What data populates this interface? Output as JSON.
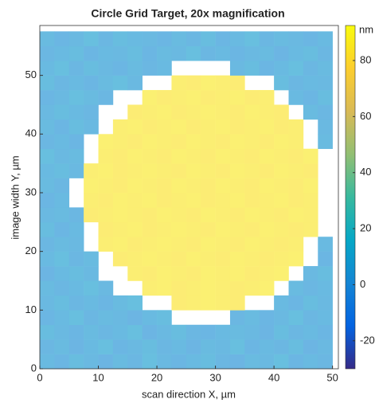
{
  "chart_data": {
    "type": "heatmap",
    "title": "Circle Grid Target, 20x magnification",
    "xlabel": "scan direction X, µm",
    "ylabel": "image width Y, µm",
    "colorbar_label": "nm",
    "colormap": "parula",
    "xlim": [
      0,
      51
    ],
    "ylim": [
      0,
      58.5
    ],
    "clim": [
      -30,
      92.5
    ],
    "xticks": [
      0,
      10,
      20,
      30,
      40,
      50
    ],
    "yticks": [
      0,
      10,
      20,
      30,
      40,
      50
    ],
    "cticks": [
      -20,
      0,
      20,
      40,
      60,
      80
    ],
    "x": [
      1.25,
      3.75,
      6.25,
      8.75,
      11.25,
      13.75,
      16.25,
      18.75,
      21.25,
      23.75,
      26.25,
      28.75,
      31.25,
      33.75,
      36.25,
      38.75,
      41.25,
      43.75,
      46.25,
      48.75
    ],
    "y": [
      1.25,
      3.75,
      6.25,
      8.75,
      11.25,
      13.75,
      16.25,
      18.75,
      21.25,
      23.75,
      26.25,
      28.75,
      31.25,
      33.75,
      36.25,
      38.75,
      41.25,
      43.75,
      46.25,
      48.75,
      51.25,
      53.75,
      56.25
    ],
    "z": [
      [
        6,
        3,
        8,
        5,
        2,
        7,
        4,
        9,
        5,
        3,
        6,
        8,
        4,
        2,
        7,
        5,
        9,
        3,
        6,
        4
      ],
      [
        4,
        7,
        2,
        6,
        9,
        3,
        5,
        8,
        4,
        6,
        2,
        7,
        5,
        9,
        3,
        6,
        4,
        8,
        2,
        5
      ],
      [
        8,
        5,
        3,
        7,
        4,
        6,
        9,
        2,
        5,
        8,
        4,
        3,
        6,
        7,
        5,
        2,
        8,
        4,
        6,
        3
      ],
      [
        3,
        6,
        9,
        4,
        7,
        5,
        2,
        6,
        8,
        null,
        null,
        null,
        null,
        4,
        7,
        3,
        5,
        9,
        4,
        6
      ],
      [
        5,
        8,
        4,
        6,
        3,
        7,
        9,
        null,
        null,
        84,
        85,
        86,
        85,
        84,
        null,
        null,
        6,
        3,
        8,
        5
      ],
      [
        7,
        4,
        6,
        9,
        5,
        null,
        null,
        85,
        86,
        84,
        85,
        86,
        85,
        84,
        85,
        86,
        null,
        7,
        4,
        6
      ],
      [
        2,
        6,
        8,
        5,
        null,
        null,
        85,
        84,
        86,
        85,
        84,
        86,
        85,
        86,
        84,
        85,
        86,
        null,
        5,
        8
      ],
      [
        6,
        9,
        4,
        7,
        null,
        84,
        85,
        86,
        85,
        84,
        86,
        85,
        84,
        86,
        85,
        84,
        85,
        86,
        null,
        3
      ],
      [
        4,
        7,
        5,
        null,
        85,
        86,
        84,
        85,
        86,
        85,
        84,
        86,
        85,
        84,
        86,
        85,
        84,
        85,
        null,
        6
      ],
      [
        8,
        3,
        6,
        null,
        84,
        85,
        86,
        84,
        85,
        86,
        85,
        84,
        86,
        85,
        84,
        86,
        85,
        84,
        85,
        null
      ],
      [
        5,
        7,
        4,
        84,
        85,
        86,
        85,
        84,
        86,
        85,
        84,
        86,
        85,
        84,
        86,
        85,
        84,
        86,
        85,
        null
      ],
      [
        3,
        6,
        null,
        85,
        84,
        86,
        85,
        86,
        84,
        85,
        86,
        84,
        85,
        86,
        84,
        85,
        86,
        84,
        85,
        null
      ],
      [
        7,
        4,
        null,
        86,
        85,
        84,
        86,
        85,
        84,
        86,
        85,
        84,
        86,
        85,
        84,
        86,
        85,
        84,
        86,
        null
      ],
      [
        6,
        8,
        5,
        85,
        86,
        84,
        85,
        86,
        85,
        84,
        86,
        85,
        84,
        86,
        85,
        84,
        86,
        85,
        84,
        null
      ],
      [
        9,
        5,
        7,
        null,
        85,
        84,
        86,
        85,
        84,
        86,
        85,
        84,
        86,
        85,
        84,
        86,
        85,
        84,
        86,
        null
      ],
      [
        4,
        6,
        3,
        null,
        86,
        85,
        84,
        86,
        85,
        84,
        86,
        85,
        84,
        86,
        85,
        84,
        86,
        85,
        null,
        7
      ],
      [
        7,
        3,
        8,
        5,
        null,
        85,
        86,
        84,
        85,
        86,
        84,
        85,
        86,
        84,
        85,
        86,
        84,
        85,
        null,
        5
      ],
      [
        5,
        8,
        6,
        4,
        null,
        null,
        84,
        85,
        86,
        84,
        85,
        86,
        85,
        84,
        86,
        85,
        84,
        null,
        7,
        4
      ],
      [
        3,
        5,
        9,
        7,
        4,
        null,
        null,
        86,
        84,
        85,
        86,
        84,
        85,
        86,
        84,
        85,
        null,
        6,
        3,
        8
      ],
      [
        8,
        4,
        6,
        3,
        7,
        9,
        5,
        null,
        null,
        85,
        84,
        86,
        85,
        84,
        null,
        null,
        8,
        4,
        6,
        5
      ],
      [
        6,
        9,
        4,
        8,
        5,
        3,
        7,
        4,
        6,
        null,
        null,
        null,
        null,
        5,
        8,
        3,
        6,
        9,
        4,
        7
      ],
      [
        4,
        6,
        8,
        3,
        6,
        5,
        8,
        3,
        7,
        5,
        9,
        4,
        6,
        3,
        5,
        7,
        2,
        6,
        8,
        4
      ],
      [
        7,
        3,
        5,
        9,
        4,
        8,
        6,
        5,
        3,
        7,
        4,
        8,
        3,
        6,
        9,
        4,
        7,
        5,
        3,
        6
      ]
    ]
  }
}
